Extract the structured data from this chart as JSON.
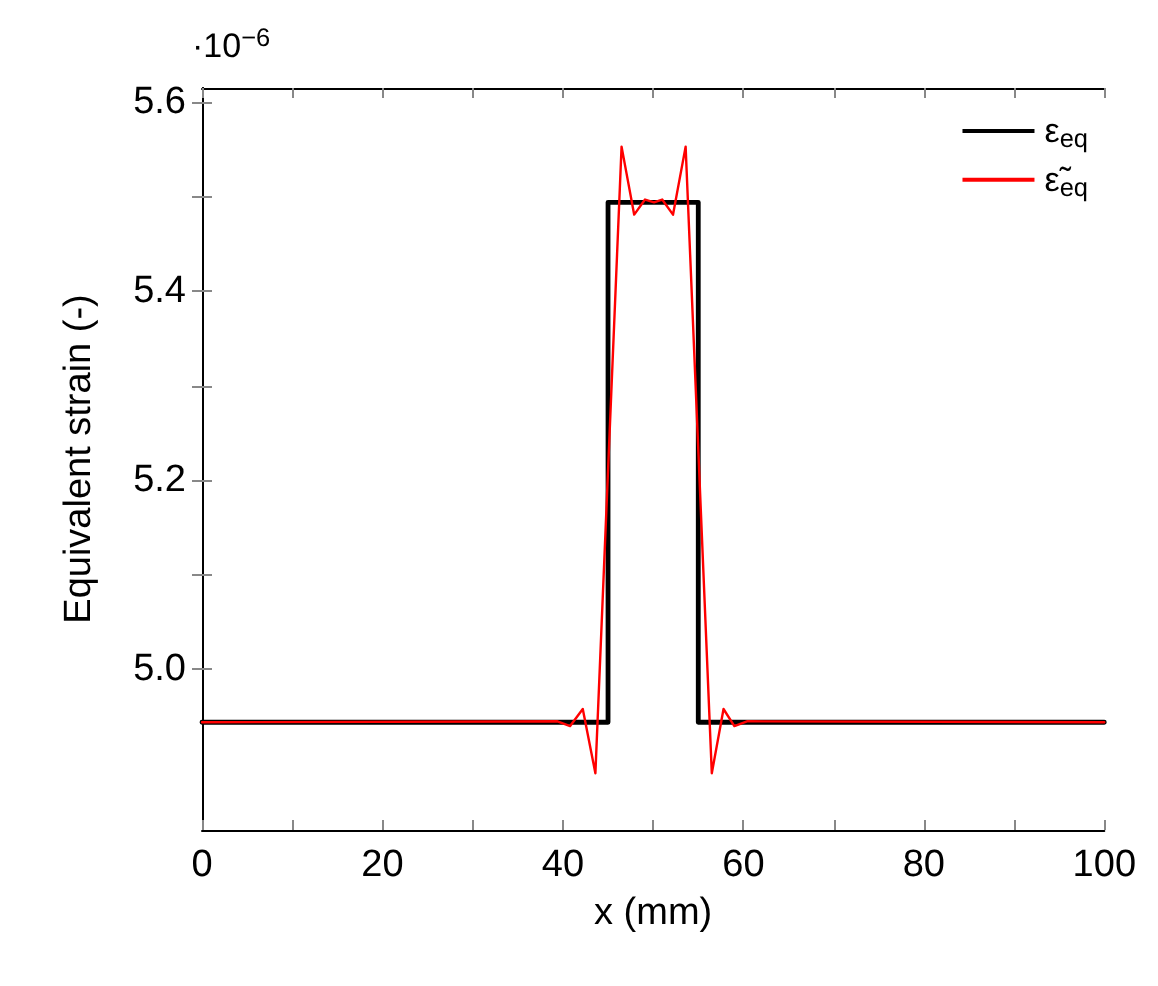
{
  "chart_data": {
    "type": "line",
    "xlabel": "x (mm)",
    "ylabel": "Equivalent strain (-)",
    "annotations": [
      "·10$^{−6}$"
    ],
    "xlim": [
      0,
      100
    ],
    "xticks": [
      0,
      20,
      40,
      60,
      80,
      100
    ],
    "ylim": [
      4.83,
      5.615
    ],
    "yticks": [
      {
        "value": 5.0,
        "label": "5.0"
      },
      5.2,
      5.4,
      5.6
    ],
    "grid": false,
    "legend": "top right",
    "marker": "none",
    "line_style": "solid",
    "series": [
      {
        "name": "ε$_{eq}$",
        "color": "#000000",
        "type": "step",
        "x": [
          0,
          45,
          55,
          100
        ],
        "values": [
          4.944,
          5.494,
          4.944,
          4.944
        ]
      },
      {
        "name": "ε̃$_{eq}$",
        "color": "#ff0000",
        "x": [
          0,
          39.4,
          40.8,
          42.2,
          43.6,
          46.5,
          47.9,
          49.1,
          50.1,
          51.0,
          52.2,
          53.6,
          56.5,
          57.8,
          59.0,
          60.4,
          100
        ],
        "values": [
          4.944,
          4.945,
          4.94,
          4.958,
          4.89,
          5.553,
          5.481,
          5.497,
          5.494,
          5.497,
          5.481,
          5.553,
          4.89,
          4.958,
          4.94,
          4.945,
          4.944
        ]
      }
    ]
  }
}
